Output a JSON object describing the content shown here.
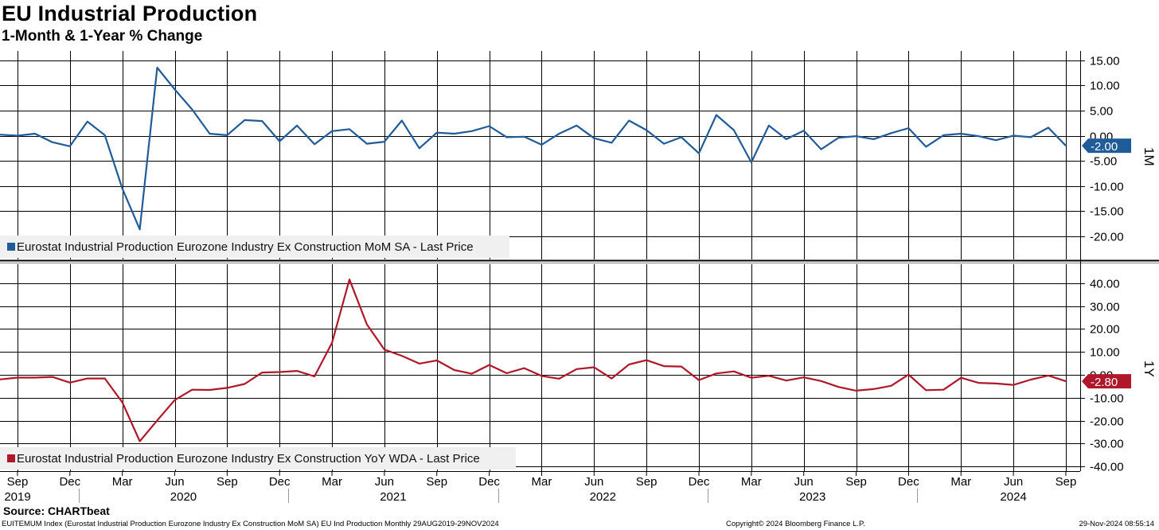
{
  "header": {
    "title": "EU Industrial Production",
    "subtitle": "1-Month & 1-Year % Change"
  },
  "footer": {
    "source": "Source: CHARTbeat",
    "index_desc": "EUITEMUM Index (Eurostat Industrial Production Eurozone Industry Ex Construction MoM SA) EU Ind Production  Monthly 29AUG2019-29NOV2024",
    "copyright": "Copyright© 2024 Bloomberg Finance L.P.",
    "timestamp": "29-Nov-2024 08:55:14"
  },
  "colors": {
    "mom": "#1f5c99",
    "yoy": "#b0182a",
    "grid": "#000000",
    "legend_bg": "#f0f0f0"
  },
  "x_axis": {
    "month_labels": [
      "Sep",
      "Dec",
      "Mar",
      "Jun",
      "Sep",
      "Dec",
      "Mar",
      "Jun",
      "Sep",
      "Dec",
      "Mar",
      "Jun",
      "Sep",
      "Dec",
      "Mar",
      "Jun",
      "Sep",
      "Dec",
      "Mar",
      "Jun",
      "Sep"
    ],
    "year_labels": [
      "2019",
      "2020",
      "2021",
      "2022",
      "2023",
      "2024"
    ]
  },
  "chart_data": [
    {
      "type": "line",
      "panel_tag": "1M",
      "legend": "Eurostat Industrial Production Eurozone Industry Ex Construction MoM SA - Last Price",
      "last_value_label": "-2.00",
      "ylim": [
        -22.5,
        17.5
      ],
      "yticks": [
        15,
        10,
        5,
        0,
        -5,
        -10,
        -15,
        -20
      ],
      "ytick_labels": [
        "15.00",
        "10.00",
        "5.00",
        "0.00",
        "-5.00",
        "-10.00",
        "-15.00",
        "-20.00"
      ],
      "x_start": "2019-08",
      "x_end": "2024-09",
      "series": [
        {
          "name": "Eurostat Industrial Production Eurozone Industry Ex Construction MoM SA",
          "values": [
            0.2,
            0.0,
            0.4,
            -1.3,
            -2.1,
            2.8,
            0.1,
            -10.5,
            -18.6,
            13.5,
            9.2,
            5.2,
            0.4,
            0.1,
            3.1,
            2.9,
            -1.1,
            2.0,
            -1.7,
            0.9,
            1.3,
            -1.6,
            -1.2,
            3.0,
            -2.5,
            0.6,
            0.4,
            0.9,
            1.9,
            -0.3,
            -0.2,
            -1.8,
            0.4,
            2.0,
            -0.5,
            -1.4,
            3.0,
            1.1,
            -1.6,
            -0.3,
            -3.5,
            4.1,
            1.1,
            -5.3,
            2.0,
            -0.7,
            1.0,
            -2.7,
            -0.4,
            -0.1,
            -0.7,
            0.5,
            1.5,
            -2.2,
            0.1,
            0.4,
            -0.1,
            -0.9,
            0.0,
            -0.3,
            1.6,
            -2.0
          ]
        }
      ]
    },
    {
      "type": "line",
      "panel_tag": "1Y",
      "legend": "Eurostat Industrial Production Eurozone Industry Ex Construction YoY WDA - Last Price",
      "last_value_label": "-2.80",
      "ylim": [
        -42,
        48
      ],
      "yticks": [
        40,
        30,
        20,
        10,
        0,
        -10,
        -20,
        -30,
        -40
      ],
      "ytick_labels": [
        "40.00",
        "30.00",
        "20.00",
        "10.00",
        "0.00",
        "-10.00",
        "-20.00",
        "-30.00",
        "-40.00"
      ],
      "x_start": "2019-08",
      "x_end": "2024-09",
      "series": [
        {
          "name": "Eurostat Industrial Production Eurozone Industry Ex Construction YoY WDA",
          "values": [
            -2.0,
            -1.2,
            -1.2,
            -0.9,
            -3.4,
            -1.6,
            -1.6,
            -12.0,
            -29.0,
            -19.9,
            -11.0,
            -6.5,
            -6.6,
            -5.7,
            -4.0,
            1.0,
            1.2,
            1.7,
            -0.7,
            14.0,
            41.6,
            22.0,
            11.0,
            8.3,
            4.9,
            6.3,
            2.1,
            0.5,
            4.3,
            0.7,
            2.9,
            -0.5,
            -1.7,
            2.5,
            3.3,
            -1.6,
            4.5,
            6.4,
            3.8,
            3.6,
            -2.3,
            0.6,
            1.5,
            -1.3,
            -0.4,
            -2.5,
            -1.1,
            -2.7,
            -5.3,
            -6.9,
            -6.2,
            -4.8,
            0.1,
            -6.7,
            -6.5,
            -1.3,
            -3.5,
            -3.8,
            -4.4,
            -2.1,
            -0.3,
            -2.8
          ]
        }
      ]
    }
  ]
}
